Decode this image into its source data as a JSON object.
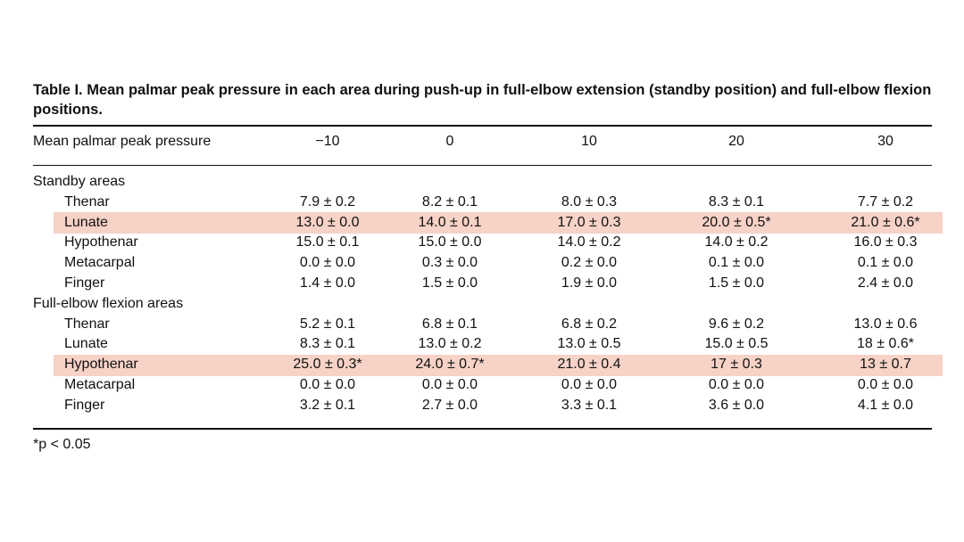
{
  "table": {
    "caption": "Table I. Mean palmar peak pressure in each area during push-up in full-elbow extension (standby position) and full-elbow flexion positions.",
    "columns": [
      "Mean palmar peak pressure",
      "−10",
      "0",
      "10",
      "20",
      "30"
    ],
    "sections": [
      {
        "title": "Standby areas",
        "rows": [
          {
            "label": "Thenar",
            "values": [
              "7.9 ± 0.2",
              "8.2 ± 0.1",
              "8.0 ± 0.3",
              "8.3 ± 0.1",
              "7.7 ± 0.2"
            ],
            "highlight": false
          },
          {
            "label": "Lunate",
            "values": [
              "13.0 ± 0.0",
              "14.0 ± 0.1",
              "17.0 ± 0.3",
              "20.0 ± 0.5*",
              "21.0 ± 0.6*"
            ],
            "highlight": true
          },
          {
            "label": "Hypothenar",
            "values": [
              "15.0 ± 0.1",
              "15.0 ± 0.0",
              "14.0 ± 0.2",
              "14.0 ± 0.2",
              "16.0 ± 0.3"
            ],
            "highlight": false
          },
          {
            "label": "Metacarpal",
            "values": [
              "0.0 ± 0.0",
              "0.3 ± 0.0",
              "0.2 ± 0.0",
              "0.1 ± 0.0",
              "0.1 ± 0.0"
            ],
            "highlight": false
          },
          {
            "label": "Finger",
            "values": [
              "1.4 ± 0.0",
              "1.5 ± 0.0",
              "1.9 ± 0.0",
              "1.5 ± 0.0",
              "2.4 ± 0.0"
            ],
            "highlight": false
          }
        ]
      },
      {
        "title": "Full-elbow flexion areas",
        "rows": [
          {
            "label": "Thenar",
            "values": [
              "5.2 ± 0.1",
              "6.8 ± 0.1",
              "6.8 ± 0.2",
              "9.6 ± 0.2",
              "13.0 ± 0.6"
            ],
            "highlight": false
          },
          {
            "label": "Lunate",
            "values": [
              "8.3 ± 0.1",
              "13.0 ± 0.2",
              "13.0 ± 0.5",
              "15.0 ± 0.5",
              "18 ± 0.6*"
            ],
            "highlight": false
          },
          {
            "label": "Hypothenar",
            "values": [
              "25.0 ± 0.3*",
              "24.0 ± 0.7*",
              "21.0 ± 0.4",
              "17 ± 0.3",
              "13 ± 0.7"
            ],
            "highlight": true
          },
          {
            "label": "Metacarpal",
            "values": [
              "0.0 ± 0.0",
              "0.0 ± 0.0",
              "0.0 ± 0.0",
              "0.0 ± 0.0",
              "0.0 ± 0.0"
            ],
            "highlight": false
          },
          {
            "label": "Finger",
            "values": [
              "3.2 ± 0.1",
              "2.7 ± 0.0",
              "3.3 ± 0.1",
              "3.6 ± 0.0",
              "4.1 ± 0.0"
            ],
            "highlight": false
          }
        ]
      }
    ],
    "footnote": "*p < 0.05"
  },
  "colors": {
    "highlight": "#f7d2c6",
    "text": "#111111",
    "rule": "#111111"
  }
}
